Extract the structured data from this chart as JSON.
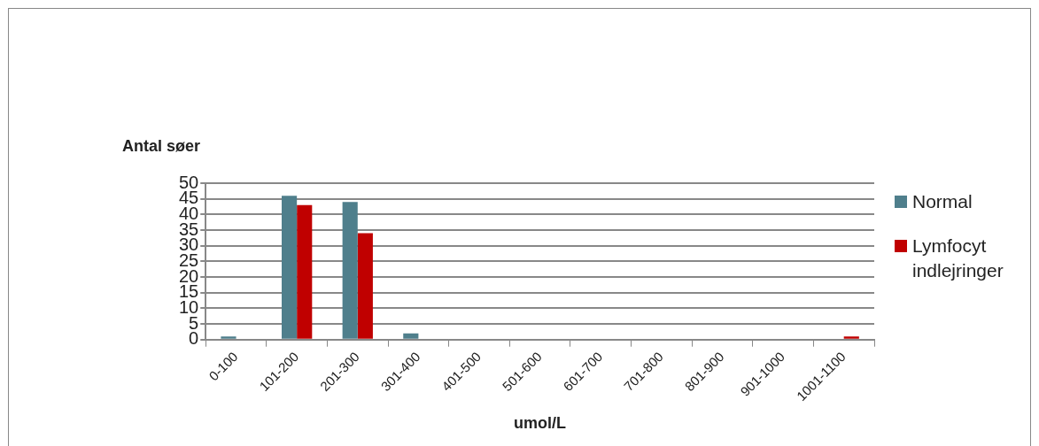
{
  "chart_data": {
    "type": "bar",
    "ylabel": "Antal søer",
    "xlabel": "umol/L",
    "categories": [
      "0-100",
      "101-200",
      "201-300",
      "301-400",
      "401-500",
      "501-600",
      "601-700",
      "701-800",
      "801-900",
      "901-1000",
      "1001-1100"
    ],
    "series": [
      {
        "name": "Normal",
        "color": "#4f7f8c",
        "values": [
          1,
          46,
          44,
          2,
          0,
          0,
          0,
          0,
          0,
          0,
          0
        ]
      },
      {
        "name": "Lymfocyt indlejringer",
        "color": "#c00000",
        "values": [
          0,
          43,
          34,
          0,
          0,
          0,
          0,
          0,
          0,
          0,
          1
        ]
      }
    ],
    "ylim": [
      0,
      50
    ],
    "yticks": [
      0,
      5,
      10,
      15,
      20,
      25,
      30,
      35,
      40,
      45,
      50
    ],
    "grid": "y",
    "legend": "right"
  }
}
